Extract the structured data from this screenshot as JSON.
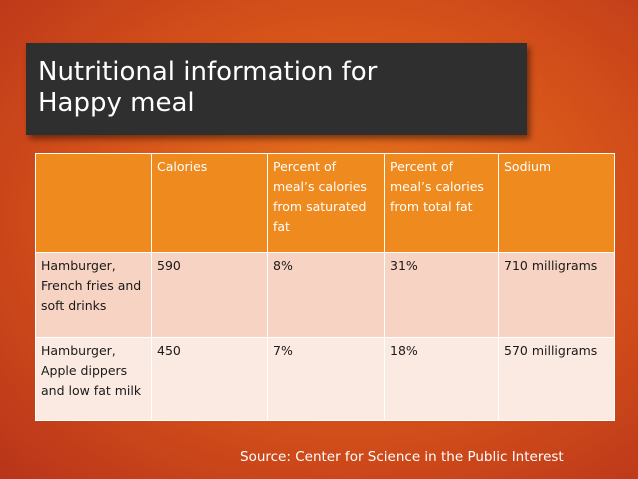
{
  "slide": {
    "title_line1": "Nutritional information for",
    "title_line2": "Happy meal",
    "source": "Source: Center for Science in the Public Interest"
  },
  "table": {
    "headers": [
      "",
      "Calories",
      "Percent of meal’s calories from saturated fat",
      "Percent of meal’s calories from total fat",
      "Sodium"
    ],
    "rows": [
      [
        "Hamburger, French fries and soft drinks",
        "590",
        "8%",
        "31%",
        "710 milligrams"
      ],
      [
        "Hamburger, Apple dippers and low fat milk",
        "450",
        "7%",
        "18%",
        "570 milligrams"
      ]
    ]
  },
  "colors": {
    "background": "#d4501a",
    "title_box": "#2f2f2f",
    "header_fill": "#ee8a1e",
    "row1_fill": "#f6d3c2",
    "row2_fill": "#fbeae2"
  }
}
